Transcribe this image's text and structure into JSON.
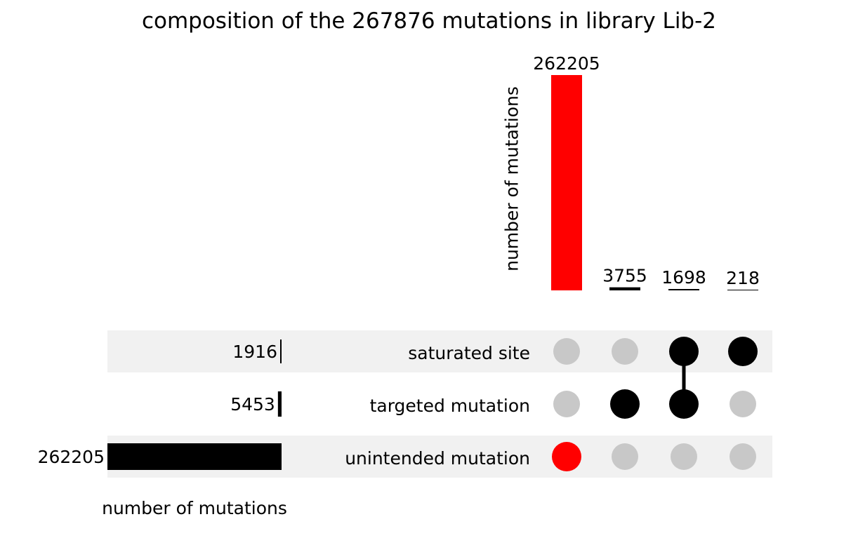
{
  "chart_data": {
    "type": "bar",
    "title": "composition of the 267876 mutations in library Lib-2",
    "intersections": {
      "ylabel": "number of mutations",
      "values": [
        262205,
        3755,
        1698,
        218
      ],
      "colors": [
        "#ff0000",
        "#000000",
        "#000000",
        "#000000"
      ],
      "memberships": [
        [
          "unintended mutation"
        ],
        [
          "targeted mutation"
        ],
        [
          "saturated site",
          "targeted mutation"
        ],
        [
          "saturated site"
        ]
      ]
    },
    "sets": {
      "xlabel": "number of mutations",
      "names": [
        "saturated site",
        "targeted mutation",
        "unintended mutation"
      ],
      "values": [
        1916,
        5453,
        262205
      ]
    },
    "colors": {
      "highlight": "#ff0000",
      "active_dot": "#000000",
      "inactive_dot": "#c8c8c8",
      "stripe": "#f1f1f1"
    }
  }
}
